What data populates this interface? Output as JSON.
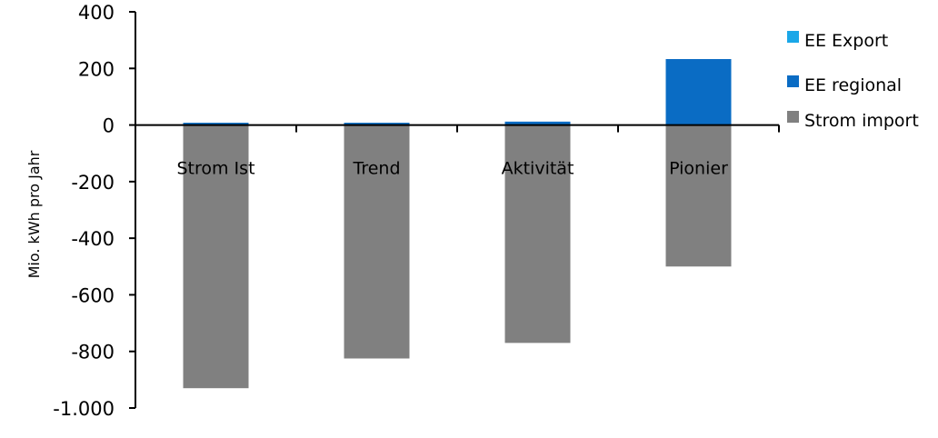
{
  "chart_data": {
    "type": "bar",
    "stacked": true,
    "categories": [
      "Strom Ist",
      "Trend",
      "Aktivität",
      "Pionier"
    ],
    "series": [
      {
        "name": "EE Export",
        "color": "#1aa7e8",
        "values": [
          0,
          0,
          0,
          0
        ]
      },
      {
        "name": "EE regional",
        "color": "#0a6cc4",
        "values": [
          8,
          8,
          12,
          233
        ]
      },
      {
        "name": "Strom import",
        "color": "#808080",
        "values": [
          -930,
          -825,
          -770,
          -500
        ]
      }
    ],
    "title": "",
    "xlabel": "",
    "ylabel": "Mio. kWh pro Jahr",
    "ylim": [
      -1000,
      400
    ],
    "yticks": [
      400,
      200,
      0,
      -200,
      -400,
      -600,
      -800,
      -1000
    ],
    "ytick_labels": [
      "400",
      "200",
      "0",
      "-200",
      "-400",
      "-600",
      "-800",
      "-1.000"
    ],
    "grid": false,
    "legend_position": "right"
  }
}
